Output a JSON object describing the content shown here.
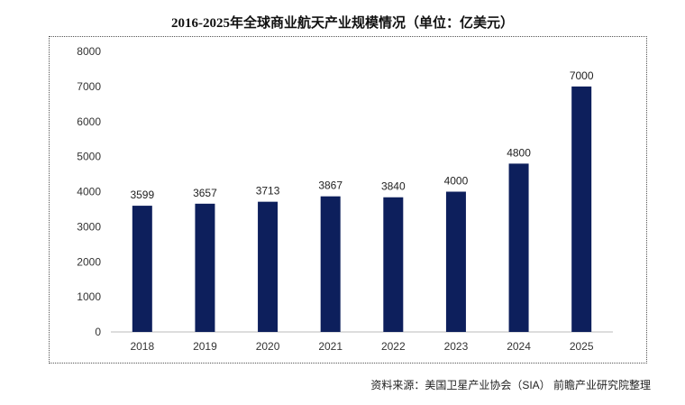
{
  "chart_data": {
    "type": "bar",
    "title": "2016-2025年全球商业航天产业规模情况（单位：亿美元）",
    "categories": [
      "2018",
      "2019",
      "2020",
      "2021",
      "2022",
      "2023",
      "2024",
      "2025"
    ],
    "values": [
      3599,
      3657,
      3713,
      3867,
      3840,
      4000,
      4800,
      7000
    ],
    "ylim": [
      0,
      8000
    ],
    "yticks": [
      0,
      1000,
      2000,
      3000,
      4000,
      5000,
      6000,
      7000,
      8000
    ],
    "xlabel": "",
    "ylabel": "",
    "grid": false,
    "bar_color": "#0d1f5c",
    "source": "资料来源：美国卫星产业协会（SIA） 前瞻产业研究院整理"
  }
}
